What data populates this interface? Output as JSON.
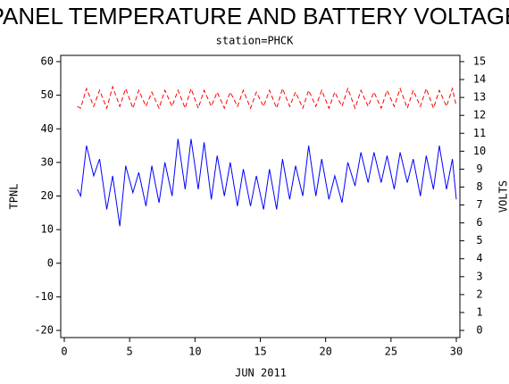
{
  "chart_data": {
    "type": "line",
    "title": "PANEL TEMPERATURE AND BATTERY VOLTAGE",
    "subtitle": "station=PHCK",
    "x_label": "JUN 2011",
    "y_label": "TPNL",
    "y2_label": "VOLTS",
    "x": [
      1.0,
      1.25,
      1.7,
      2.25,
      2.7,
      3.25,
      3.7,
      4.25,
      4.7,
      5.25,
      5.7,
      6.25,
      6.7,
      7.25,
      7.7,
      8.25,
      8.7,
      9.25,
      9.7,
      10.25,
      10.7,
      11.25,
      11.7,
      12.25,
      12.7,
      13.25,
      13.7,
      14.25,
      14.7,
      15.25,
      15.7,
      16.25,
      16.7,
      17.25,
      17.7,
      18.25,
      18.7,
      19.25,
      19.7,
      20.25,
      20.7,
      21.25,
      21.7,
      22.25,
      22.7,
      23.25,
      23.7,
      24.25,
      24.7,
      25.25,
      25.7,
      26.25,
      26.7,
      27.25,
      27.7,
      28.25,
      28.7,
      29.25,
      29.7,
      30.0
    ],
    "series": [
      {
        "name": "TPNL",
        "color": "#0000ff",
        "axis": "y",
        "values": [
          22,
          20,
          35,
          26,
          31,
          16,
          26,
          11,
          29,
          21,
          27,
          17,
          29,
          18,
          30,
          20,
          37,
          22,
          37,
          22,
          36,
          19,
          32,
          20,
          30,
          17,
          28,
          17,
          26,
          16,
          28,
          16,
          31,
          19,
          29,
          20,
          35,
          20,
          31,
          19,
          26,
          18,
          30,
          23,
          33,
          24,
          33,
          24,
          32,
          22,
          33,
          24,
          31,
          20,
          32,
          22,
          35,
          22,
          31,
          19
        ]
      },
      {
        "name": "VOLTS",
        "color": "#ff0000",
        "axis": "y2",
        "dashed": true,
        "values": [
          12.5,
          12.4,
          13.5,
          12.5,
          13.4,
          12.4,
          13.6,
          12.5,
          13.5,
          12.4,
          13.4,
          12.5,
          13.3,
          12.4,
          13.4,
          12.5,
          13.4,
          12.4,
          13.5,
          12.4,
          13.4,
          12.5,
          13.3,
          12.4,
          13.3,
          12.5,
          13.4,
          12.4,
          13.3,
          12.5,
          13.4,
          12.4,
          13.5,
          12.5,
          13.3,
          12.4,
          13.4,
          12.5,
          13.4,
          12.4,
          13.3,
          12.5,
          13.5,
          12.4,
          13.4,
          12.5,
          13.3,
          12.4,
          13.4,
          12.5,
          13.5,
          12.4,
          13.4,
          12.5,
          13.5,
          12.4,
          13.4,
          12.5,
          13.5,
          12.5
        ]
      }
    ],
    "xlim": [
      0,
      30
    ],
    "xticks": [
      0,
      5,
      10,
      15,
      20,
      25,
      30
    ],
    "ylim": [
      -20,
      60
    ],
    "yticks": [
      -20,
      -10,
      0,
      10,
      20,
      30,
      40,
      50,
      60
    ],
    "y2lim": [
      0,
      15
    ],
    "y2ticks": [
      0,
      1,
      2,
      3,
      4,
      5,
      6,
      7,
      8,
      9,
      10,
      11,
      12,
      13,
      14,
      15
    ]
  }
}
